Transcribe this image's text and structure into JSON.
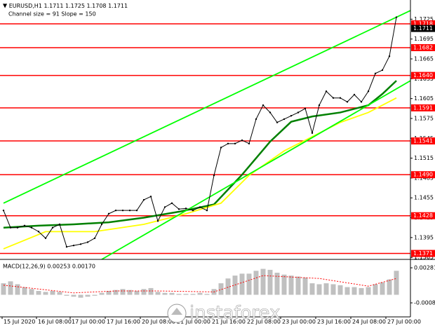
{
  "header": {
    "line1": "EURUSD,H1  1.1711 1.1725 1.1708 1.1711",
    "line2": "Channel size = 91 Slope = 150"
  },
  "watermark": "instaforex",
  "chart_data": {
    "type": "line",
    "xlim": [
      -0.5,
      58
    ],
    "xticks": [
      {
        "value": -0.2,
        "label": "15 Jul 2020"
      },
      {
        "value": 4.7,
        "label": "16 Jul 08:00"
      },
      {
        "value": 9.5,
        "label": "17 Jul 00:00"
      },
      {
        "value": 14.5,
        "label": "17 Jul 16:00"
      },
      {
        "value": 19.5,
        "label": "20 Jul 08:00"
      },
      {
        "value": 24.5,
        "label": "21 Jul 00:00"
      },
      {
        "value": 29.5,
        "label": "21 Jul 16:00"
      },
      {
        "value": 34.5,
        "label": "22 Jul 08:00"
      },
      {
        "value": 39.5,
        "label": "23 Jul 00:00"
      },
      {
        "value": 44.5,
        "label": "23 Jul 16:00"
      },
      {
        "value": 49.5,
        "label": "24 Jul 08:00"
      },
      {
        "value": 54.5,
        "label": "27 Jul 00:00"
      }
    ],
    "ylim": [
      1.1362,
      1.1754
    ],
    "yticks": [
      1.1725,
      1.1695,
      1.1665,
      1.1635,
      1.1605,
      1.1575,
      1.1545,
      1.1515,
      1.1485,
      1.1455,
      1.1425,
      1.1395,
      1.1365
    ],
    "color": "#000000",
    "values": [
      1.1436,
      1.141,
      1.141,
      1.1413,
      1.141,
      1.1404,
      1.1394,
      1.141,
      1.1415,
      1.1381,
      1.1383,
      1.1385,
      1.1388,
      1.1394,
      1.1415,
      1.1431,
      1.1436,
      1.1436,
      1.1436,
      1.1436,
      1.1452,
      1.1457,
      1.142,
      1.1441,
      1.1447,
      1.1438,
      1.1439,
      1.1436,
      1.1441,
      1.1436,
      1.1489,
      1.1531,
      1.1537,
      1.1537,
      1.1542,
      1.1537,
      1.1574,
      1.1595,
      1.1584,
      1.1569,
      1.1574,
      1.1579,
      1.1584,
      1.159,
      1.1553,
      1.1595,
      1.1616,
      1.1606,
      1.1606,
      1.16,
      1.1611,
      1.16,
      1.1616,
      1.1643,
      1.1648,
      1.1669,
      1.1728
    ],
    "lines": [
      {
        "color": "#008000",
        "x": [
          0,
          5,
          10,
          15,
          20,
          25,
          30,
          34,
          38,
          41,
          44,
          48,
          52,
          54,
          56
        ],
        "values": [
          1.141,
          1.1413,
          1.1415,
          1.1418,
          1.1425,
          1.1434,
          1.1445,
          1.149,
          1.154,
          1.157,
          1.1578,
          1.1584,
          1.1595,
          1.1612,
          1.1632
        ]
      },
      {
        "color": "#ffff00",
        "x": [
          0,
          6,
          13,
          20,
          26,
          31,
          35,
          40,
          43,
          48,
          52,
          56
        ],
        "values": [
          1.1378,
          1.1404,
          1.1404,
          1.1415,
          1.1431,
          1.1447,
          1.1489,
          1.1526,
          1.1542,
          1.1569,
          1.1584,
          1.1606
        ]
      },
      {
        "color": "#00ff00",
        "x": [
          0,
          58
        ],
        "values": [
          1.1447,
          1.1738
        ]
      },
      {
        "color": "#00ff00",
        "x": [
          14,
          58
        ],
        "values": [
          1.1362,
          1.1632
        ]
      }
    ],
    "levels": [
      1.1718,
      1.1682,
      {
        "value": 1.164,
        "label": "1.1640"
      },
      1.1591,
      1.1541,
      {
        "value": 1.149,
        "label": "1.1490"
      },
      1.1428,
      1.1371
    ],
    "level_color": "#ff0000",
    "last_price": 1.1711,
    "macd": {
      "title": "MACD(12,26,9) 0.00253 0.00170",
      "ylim": [
        -0.0023,
        0.00354
      ],
      "yticks": [
        0.00281,
        -0.00084
      ],
      "color": "#c0c0c0",
      "signal_color": "#ff0000",
      "values": [
        0.0012,
        0.0014,
        0.0011,
        0.0008,
        0.0006,
        0.0004,
        0.0003,
        0.0004,
        0.0003,
        -0.0001,
        -0.0002,
        -0.0003,
        -0.0002,
        -0.0001,
        0.0002,
        0.0004,
        0.0005,
        0.0006,
        0.0005,
        0.0004,
        0.0006,
        0.0007,
        0.0003,
        0.0002,
        0.0002,
        0.0001,
        0.0001,
        0.0001,
        0.0002,
        0.0001,
        0.0006,
        0.0012,
        0.0017,
        0.002,
        0.0022,
        0.0022,
        0.0025,
        0.0027,
        0.0026,
        0.0023,
        0.0021,
        0.002,
        0.0019,
        0.0018,
        0.0012,
        0.0011,
        0.0012,
        0.0011,
        0.001,
        0.0008,
        0.0008,
        0.0007,
        0.0008,
        0.0011,
        0.0013,
        0.0016,
        0.0025
      ],
      "signal_x": [
        0,
        10,
        16,
        22,
        30,
        37,
        45,
        52,
        56
      ],
      "signal": [
        0.001,
        0.0002,
        0.0004,
        0.0004,
        0.0003,
        0.002,
        0.0017,
        0.0009,
        0.0017
      ]
    }
  }
}
